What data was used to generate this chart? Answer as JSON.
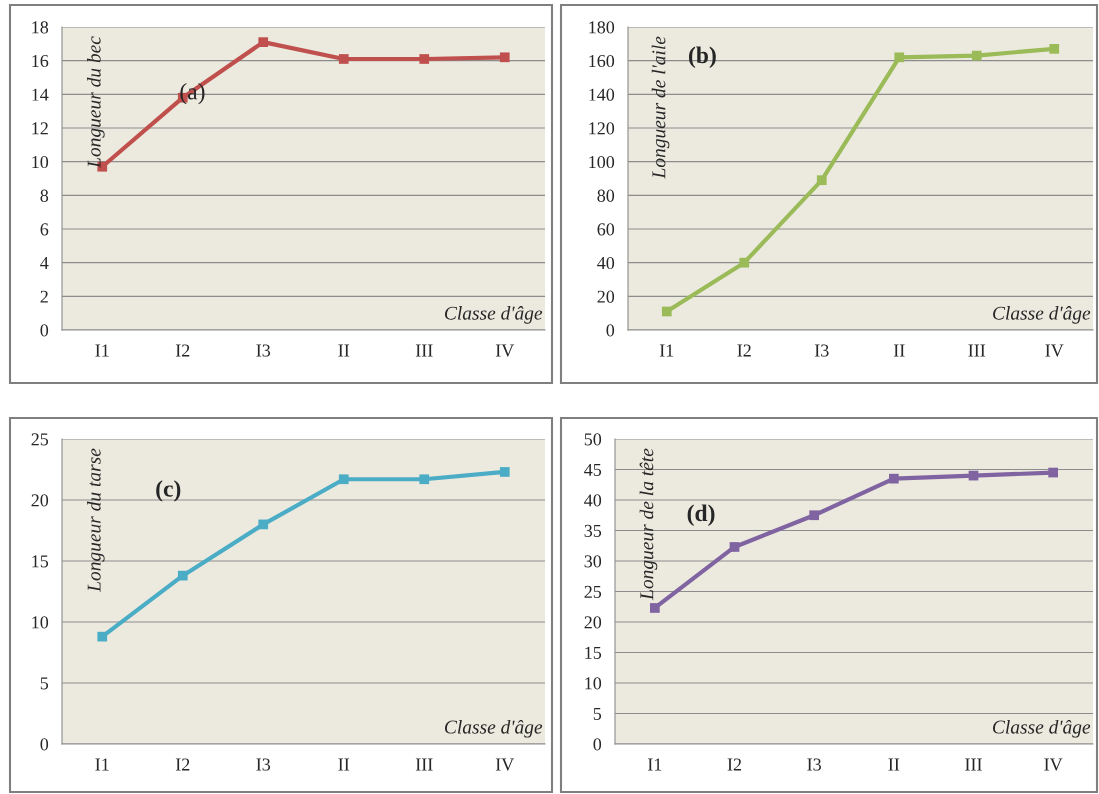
{
  "chart_data": [
    {
      "type": "line",
      "categories": [
        "I1",
        "I2",
        "I3",
        "II",
        "III",
        "IV"
      ],
      "ylabel": "Longueur du bec",
      "xlabel": "Classe d'âge",
      "annotations": [
        "(a)"
      ],
      "ylim": [
        0,
        18
      ],
      "yticks": [
        0,
        2,
        4,
        6,
        8,
        10,
        12,
        14,
        16,
        18
      ],
      "grid": "y",
      "marker": "square",
      "series": [
        {
          "color": "#c0504d",
          "values": [
            9.7,
            13.8,
            17.1,
            16.1,
            16.1,
            16.2
          ]
        }
      ]
    },
    {
      "type": "line",
      "categories": [
        "I1",
        "I2",
        "I3",
        "II",
        "III",
        "IV"
      ],
      "ylabel": "Longueur de l'aile",
      "xlabel": "Classe d'âge",
      "annotations": [
        "(b)"
      ],
      "ylim": [
        0,
        180
      ],
      "yticks": [
        0,
        20,
        40,
        60,
        80,
        100,
        120,
        140,
        160,
        180
      ],
      "grid": "y",
      "marker": "square",
      "series": [
        {
          "color": "#9bbb59",
          "values": [
            11,
            40,
            89,
            162,
            163,
            167
          ]
        }
      ]
    },
    {
      "type": "line",
      "categories": [
        "I1",
        "I2",
        "I3",
        "II",
        "III",
        "IV"
      ],
      "ylabel": "Longueur du tarse",
      "xlabel": "Classe d'âge",
      "annotations": [
        "(c)"
      ],
      "ylim": [
        0,
        25
      ],
      "yticks": [
        0,
        5,
        10,
        15,
        20,
        25
      ],
      "grid": "y",
      "marker": "square",
      "series": [
        {
          "color": "#4bacc6",
          "values": [
            8.8,
            13.8,
            18.0,
            21.7,
            21.7,
            22.3
          ]
        }
      ]
    },
    {
      "type": "line",
      "categories": [
        "I1",
        "I2",
        "I3",
        "II",
        "III",
        "IV"
      ],
      "ylabel": "Longueur de la tête",
      "xlabel": "Classe d'âge",
      "annotations": [
        "(d)"
      ],
      "ylim": [
        0,
        50
      ],
      "yticks": [
        0,
        5,
        10,
        15,
        20,
        25,
        30,
        35,
        40,
        45,
        50
      ],
      "grid": "y",
      "marker": "square",
      "series": [
        {
          "color": "#8064a2",
          "values": [
            22.3,
            32.3,
            37.5,
            43.5,
            44.0,
            44.5
          ]
        }
      ]
    }
  ]
}
